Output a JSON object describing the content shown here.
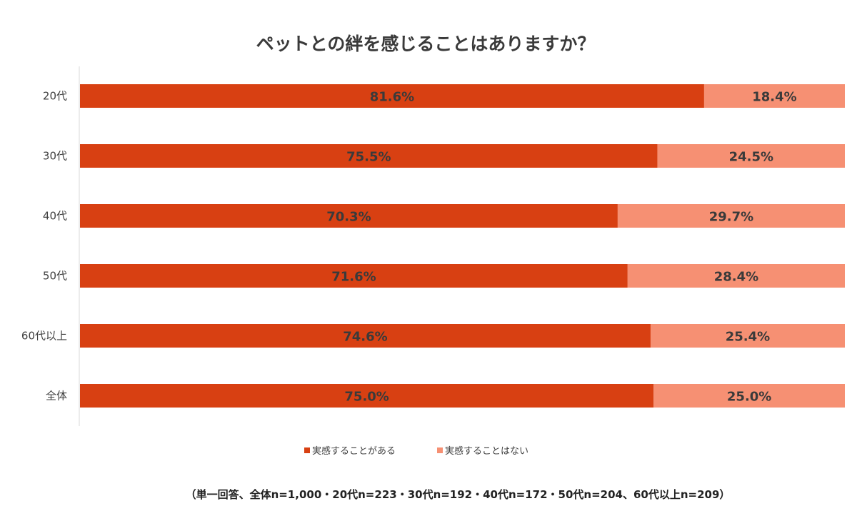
{
  "chart_data": {
    "type": "bar",
    "orientation": "horizontal",
    "stacked": true,
    "title": "ペットとの絆を感じることはありますか？",
    "categories": [
      "20代",
      "30代",
      "40代",
      "50代",
      "60代以上",
      "全体"
    ],
    "series": [
      {
        "name": "実感することがある",
        "color": "#d84012",
        "values": [
          81.6,
          75.5,
          70.3,
          71.6,
          74.6,
          75.0
        ],
        "labels": [
          "81.6%",
          "75.5%",
          "70.3%",
          "71.6%",
          "74.6%",
          "75.0%"
        ]
      },
      {
        "name": "実感することはない",
        "color": "#f69073",
        "values": [
          18.4,
          24.5,
          29.7,
          28.4,
          25.4,
          25.0
        ],
        "labels": [
          "18.4%",
          "24.5%",
          "29.7%",
          "28.4%",
          "25.4%",
          "25.0%"
        ]
      }
    ],
    "xlim": [
      0,
      100
    ],
    "grid": false,
    "legend_position": "bottom",
    "legend_marker": "■",
    "footnote": "（単一回答、全体n=1,000・20代n=223・30代n=192・40代n=172・50代n=204、60代以上n=209）"
  }
}
